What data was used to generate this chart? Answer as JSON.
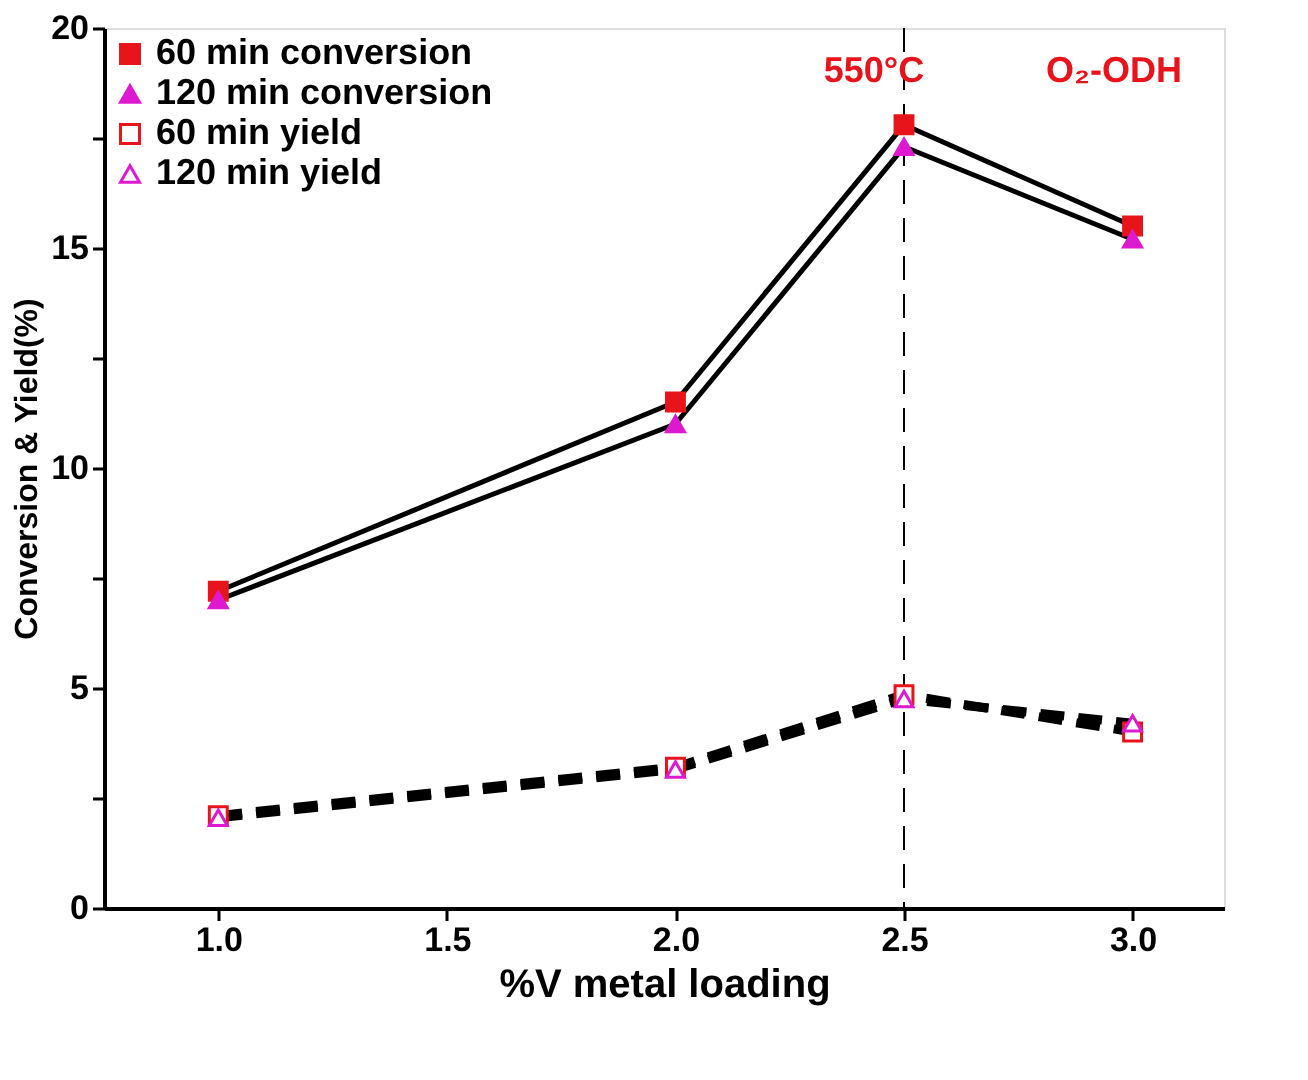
{
  "chart_data": {
    "type": "line",
    "xlabel": "%V metal loading",
    "ylabel": "Conversion & Yield(%)",
    "x": [
      1.0,
      2.0,
      2.5,
      3.0
    ],
    "xlim": [
      0.75,
      3.2
    ],
    "xticks": [
      {
        "value": 1,
        "label": "1.0"
      },
      {
        "value": 1.5,
        "label": "1.5"
      },
      {
        "value": 2,
        "label": "2.0"
      },
      {
        "value": 2.5,
        "label": "2.5"
      },
      {
        "value": 3,
        "label": "3.0"
      }
    ],
    "ylim": [
      0,
      20
    ],
    "yticks": [
      0,
      {
        "value": 2.5,
        "label": null
      },
      5,
      {
        "value": 7.5,
        "label": null
      },
      10,
      {
        "value": 12.5,
        "label": null
      },
      15,
      {
        "value": 17.5,
        "label": null
      },
      20
    ],
    "series": [
      {
        "name": "60 min conversion",
        "color": "#e8141b",
        "marker": "square",
        "line_style": "solid",
        "values": [
          7.2,
          11.5,
          17.8,
          15.5
        ]
      },
      {
        "name": "120 min conversion",
        "color": "#dd1ad0",
        "marker": "triangle",
        "line_style": "solid",
        "values": [
          7.0,
          11.0,
          17.3,
          15.2
        ]
      },
      {
        "name": "60 min yield",
        "color": "#e8141b",
        "marker": "square",
        "line_style": "dashed",
        "values": [
          2.1,
          3.2,
          4.85,
          4.0
        ]
      },
      {
        "name": "120 min yield",
        "color": "#dd1ad0",
        "marker": "triangle",
        "line_style": "dashed",
        "values": [
          2.05,
          3.15,
          4.75,
          4.2
        ]
      }
    ],
    "ref_lines": [
      {
        "axis": "x",
        "value": 2.5,
        "color": "#000000",
        "line_style": "dashed"
      }
    ],
    "annotations": [
      "550°C",
      "O₂-ODH"
    ],
    "legend": "top left",
    "grid": false
  }
}
